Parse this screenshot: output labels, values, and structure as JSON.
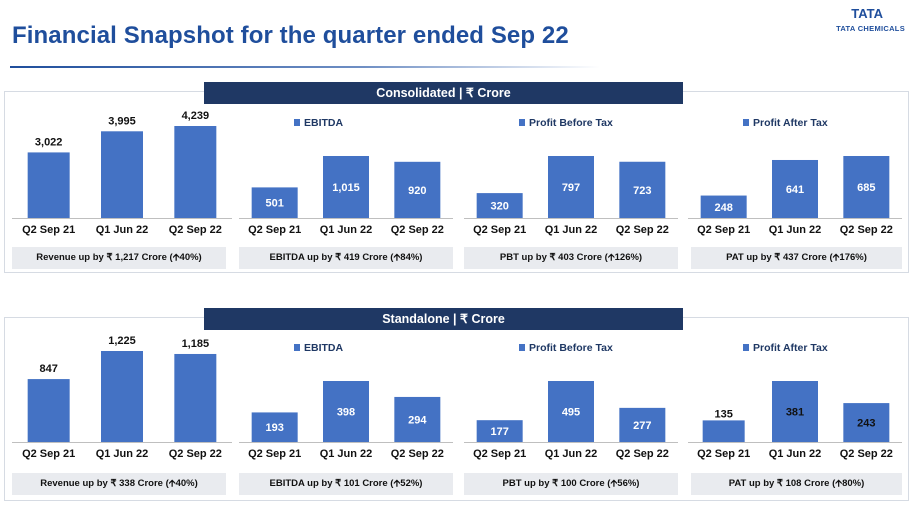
{
  "header": {
    "title": "Financial Snapshot for the quarter ended Sep 22",
    "logo_mark": "TATA",
    "logo_text": "TATA CHEMICALS"
  },
  "colors": {
    "bar": "#4472c4",
    "banner": "#1f3864",
    "title": "#1f4e9c",
    "note_bg": "#e9ebef"
  },
  "sections": [
    {
      "banner": "Consolidated | ₹ Crore"
    },
    {
      "banner": "Standalone | ₹ Crore"
    }
  ],
  "chart_data": [
    {
      "type": "bar",
      "id": "cons-revenue",
      "title": "",
      "categories": [
        "Q2 Sep 21",
        "Q1 Jun 22",
        "Q2 Sep 22"
      ],
      "values": [
        3022,
        3995,
        4239
      ],
      "labels": [
        "3,022",
        "3,995",
        "4,239"
      ],
      "label_position": "above",
      "footnote": "Revenue up by ₹ 1,217 Crore (🡩40%)"
    },
    {
      "type": "bar",
      "id": "cons-ebitda",
      "title": "EBITDA",
      "categories": [
        "Q2 Sep 21",
        "Q1 Jun 22",
        "Q2 Sep 22"
      ],
      "values": [
        501,
        1015,
        920
      ],
      "labels": [
        "501",
        "1,015",
        "920"
      ],
      "label_position": "inside",
      "footnote": "EBITDA up by ₹ 419 Crore (🡩84%)"
    },
    {
      "type": "bar",
      "id": "cons-pbt",
      "title": "Profit Before Tax",
      "categories": [
        "Q2 Sep 21",
        "Q1 Jun 22",
        "Q2 Sep 22"
      ],
      "values": [
        320,
        797,
        723
      ],
      "labels": [
        "320",
        "797",
        "723"
      ],
      "label_position": "inside",
      "footnote": "PBT up by ₹ 403 Crore (🡩126%)"
    },
    {
      "type": "bar",
      "id": "cons-pat",
      "title": "Profit After Tax",
      "categories": [
        "Q2 Sep 21",
        "Q1 Jun 22",
        "Q2 Sep 22"
      ],
      "values": [
        248,
        641,
        685
      ],
      "labels": [
        "248",
        "641",
        "685"
      ],
      "label_position": "inside",
      "footnote": "PAT up by ₹ 437 Crore (🡩176%)"
    },
    {
      "type": "bar",
      "id": "sa-revenue",
      "title": "",
      "categories": [
        "Q2 Sep 21",
        "Q1 Jun 22",
        "Q2 Sep 22"
      ],
      "values": [
        847,
        1225,
        1185
      ],
      "labels": [
        "847",
        "1,225",
        "1,185"
      ],
      "label_position": "above",
      "footnote": "Revenue up by ₹ 338 Crore (🡩40%)"
    },
    {
      "type": "bar",
      "id": "sa-ebitda",
      "title": "EBITDA",
      "categories": [
        "Q2 Sep 21",
        "Q1 Jun 22",
        "Q2 Sep 22"
      ],
      "values": [
        193,
        398,
        294
      ],
      "labels": [
        "193",
        "398",
        "294"
      ],
      "label_position": "inside",
      "footnote": "EBITDA up by ₹ 101 Crore (🡩52%)"
    },
    {
      "type": "bar",
      "id": "sa-pbt",
      "title": "Profit Before Tax",
      "categories": [
        "Q2 Sep 21",
        "Q1 Jun 22",
        "Q2 Sep 22"
      ],
      "values": [
        177,
        495,
        277
      ],
      "labels": [
        "177",
        "495",
        "277"
      ],
      "label_position": "inside",
      "footnote": "PBT up by ₹ 100 Crore (🡩56%)"
    },
    {
      "type": "bar",
      "id": "sa-pat",
      "title": "Profit After Tax",
      "categories": [
        "Q2 Sep 21",
        "Q1 Jun 22",
        "Q2 Sep 22"
      ],
      "values": [
        135,
        381,
        243
      ],
      "labels": [
        "135",
        "381",
        "243"
      ],
      "label_position": "inside-dark",
      "footnote": "PAT up by ₹ 108 Crore (🡩80%)"
    }
  ]
}
